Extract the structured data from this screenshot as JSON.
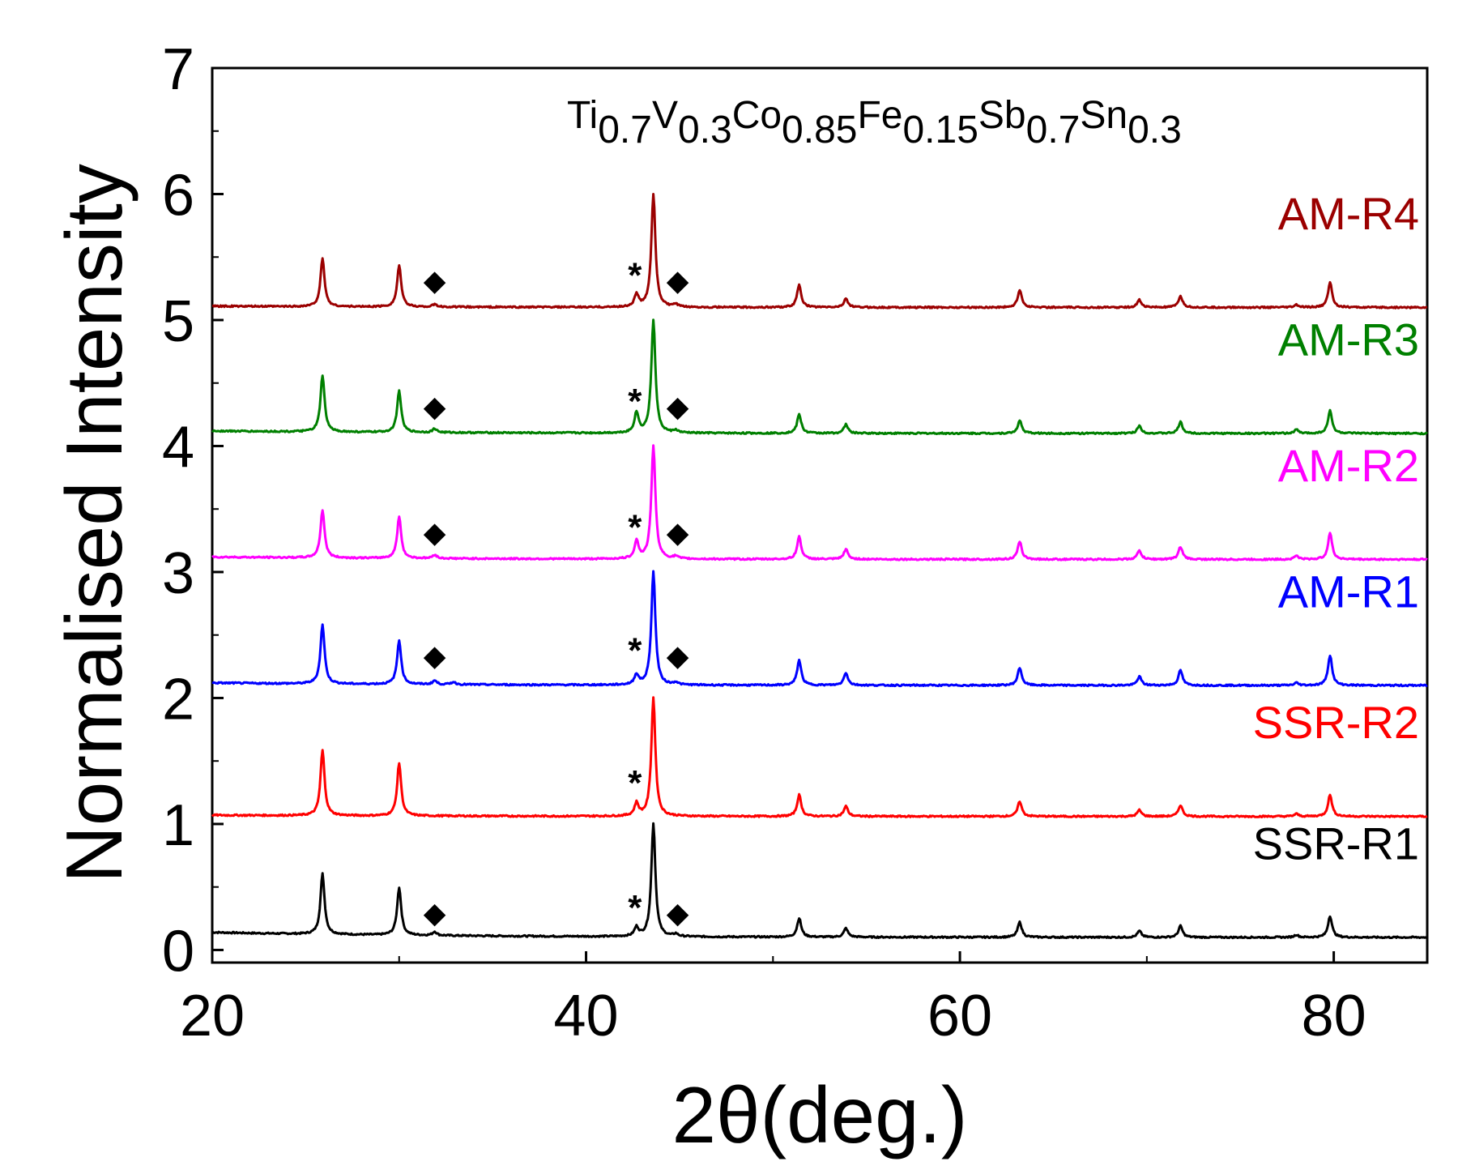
{
  "chart_data": {
    "type": "line",
    "title": "",
    "xlabel": "2θ(deg.)",
    "ylabel": "Normalised Intensity",
    "xlim": [
      20,
      85
    ],
    "ylim": [
      -0.1,
      7
    ],
    "xticks": [
      20,
      40,
      60,
      80
    ],
    "yticks": [
      0,
      1,
      2,
      3,
      4,
      5,
      6,
      7
    ],
    "grid": false,
    "annotation": {
      "parts": [
        {
          "text": "Ti",
          "sub": false
        },
        {
          "text": "0.7",
          "sub": true
        },
        {
          "text": "V",
          "sub": false
        },
        {
          "text": "0.3",
          "sub": true
        },
        {
          "text": "Co",
          "sub": false
        },
        {
          "text": "0.85",
          "sub": true
        },
        {
          "text": "Fe",
          "sub": false
        },
        {
          "text": "0.15",
          "sub": true
        },
        {
          "text": "Sb",
          "sub": false
        },
        {
          "text": "0.7",
          "sub": true
        },
        {
          "text": "Sn",
          "sub": false
        },
        {
          "text": "0.3",
          "sub": true
        }
      ]
    },
    "peak_positions_2theta": [
      25.9,
      30.0,
      42.7,
      43.6,
      51.4,
      53.9,
      63.2,
      69.6,
      71.8,
      78.0,
      79.8
    ],
    "series": [
      {
        "name": "SSR-R1",
        "color": "#000000",
        "offset": 0.1,
        "baseline_start": 0.14,
        "peaks": [
          [
            25.9,
            0.48
          ],
          [
            30.0,
            0.38
          ],
          [
            31.9,
            0.03
          ],
          [
            42.7,
            0.07
          ],
          [
            43.6,
            0.9
          ],
          [
            44.8,
            0.02
          ],
          [
            51.4,
            0.15
          ],
          [
            53.9,
            0.07
          ],
          [
            63.2,
            0.12
          ],
          [
            69.6,
            0.05
          ],
          [
            71.8,
            0.09
          ],
          [
            78.0,
            0.02
          ],
          [
            79.8,
            0.17
          ]
        ],
        "star": 42.7,
        "diamonds": [
          31.9,
          44.9
        ],
        "marker_y": 0.28
      },
      {
        "name": "SSR-R2",
        "color": "#ff0000",
        "offset": 1.06,
        "baseline_start": 1.07,
        "peaks": [
          [
            25.9,
            0.52
          ],
          [
            30.0,
            0.42
          ],
          [
            42.7,
            0.1
          ],
          [
            43.6,
            0.94
          ],
          [
            51.4,
            0.17
          ],
          [
            53.9,
            0.08
          ],
          [
            63.2,
            0.12
          ],
          [
            69.6,
            0.05
          ],
          [
            71.8,
            0.09
          ],
          [
            78.0,
            0.02
          ],
          [
            79.8,
            0.17
          ]
        ],
        "star": 42.7,
        "diamonds": [],
        "marker_y": 1.27
      },
      {
        "name": "AM-R1",
        "color": "#0000ff",
        "offset": 2.1,
        "baseline_start": 2.12,
        "peaks": [
          [
            25.9,
            0.47
          ],
          [
            30.0,
            0.35
          ],
          [
            31.9,
            0.03
          ],
          [
            32.9,
            0.02
          ],
          [
            42.7,
            0.08
          ],
          [
            43.6,
            0.9
          ],
          [
            44.8,
            0.02
          ],
          [
            51.4,
            0.2
          ],
          [
            53.9,
            0.1
          ],
          [
            63.2,
            0.14
          ],
          [
            69.6,
            0.07
          ],
          [
            71.8,
            0.12
          ],
          [
            78.0,
            0.02
          ],
          [
            79.8,
            0.24
          ]
        ],
        "star": 42.7,
        "diamonds": [
          31.9,
          44.9
        ],
        "marker_y": 2.32
      },
      {
        "name": "AM-R2",
        "color": "#ff00ff",
        "offset": 3.1,
        "baseline_start": 3.12,
        "peaks": [
          [
            25.9,
            0.38
          ],
          [
            30.0,
            0.33
          ],
          [
            31.9,
            0.03
          ],
          [
            42.7,
            0.14
          ],
          [
            43.6,
            0.9
          ],
          [
            44.8,
            0.02
          ],
          [
            51.4,
            0.18
          ],
          [
            53.9,
            0.08
          ],
          [
            63.2,
            0.14
          ],
          [
            69.6,
            0.07
          ],
          [
            71.8,
            0.1
          ],
          [
            78.0,
            0.03
          ],
          [
            79.8,
            0.21
          ]
        ],
        "star": 42.7,
        "diamonds": [
          31.9,
          44.9
        ],
        "marker_y": 3.3
      },
      {
        "name": "AM-R3",
        "color": "#008000",
        "offset": 4.1,
        "baseline_start": 4.12,
        "peaks": [
          [
            25.9,
            0.45
          ],
          [
            30.0,
            0.33
          ],
          [
            31.9,
            0.03
          ],
          [
            42.7,
            0.16
          ],
          [
            43.6,
            0.9
          ],
          [
            44.8,
            0.02
          ],
          [
            51.4,
            0.15
          ],
          [
            53.9,
            0.07
          ],
          [
            63.2,
            0.1
          ],
          [
            69.6,
            0.06
          ],
          [
            71.8,
            0.09
          ],
          [
            78.0,
            0.03
          ],
          [
            79.8,
            0.18
          ]
        ],
        "star": 42.7,
        "diamonds": [
          31.9,
          44.9
        ],
        "marker_y": 4.3
      },
      {
        "name": "AM-R4",
        "color": "#9b0000",
        "offset": 5.1,
        "baseline_start": 5.11,
        "peaks": [
          [
            25.9,
            0.38
          ],
          [
            30.0,
            0.33
          ],
          [
            31.9,
            0.02
          ],
          [
            42.7,
            0.1
          ],
          [
            43.6,
            0.9
          ],
          [
            44.8,
            0.02
          ],
          [
            51.4,
            0.18
          ],
          [
            53.9,
            0.07
          ],
          [
            63.2,
            0.14
          ],
          [
            69.6,
            0.06
          ],
          [
            71.8,
            0.09
          ],
          [
            78.0,
            0.02
          ],
          [
            79.8,
            0.2
          ]
        ],
        "star": 42.7,
        "diamonds": [
          31.9,
          44.9
        ],
        "marker_y": 5.3
      }
    ]
  }
}
